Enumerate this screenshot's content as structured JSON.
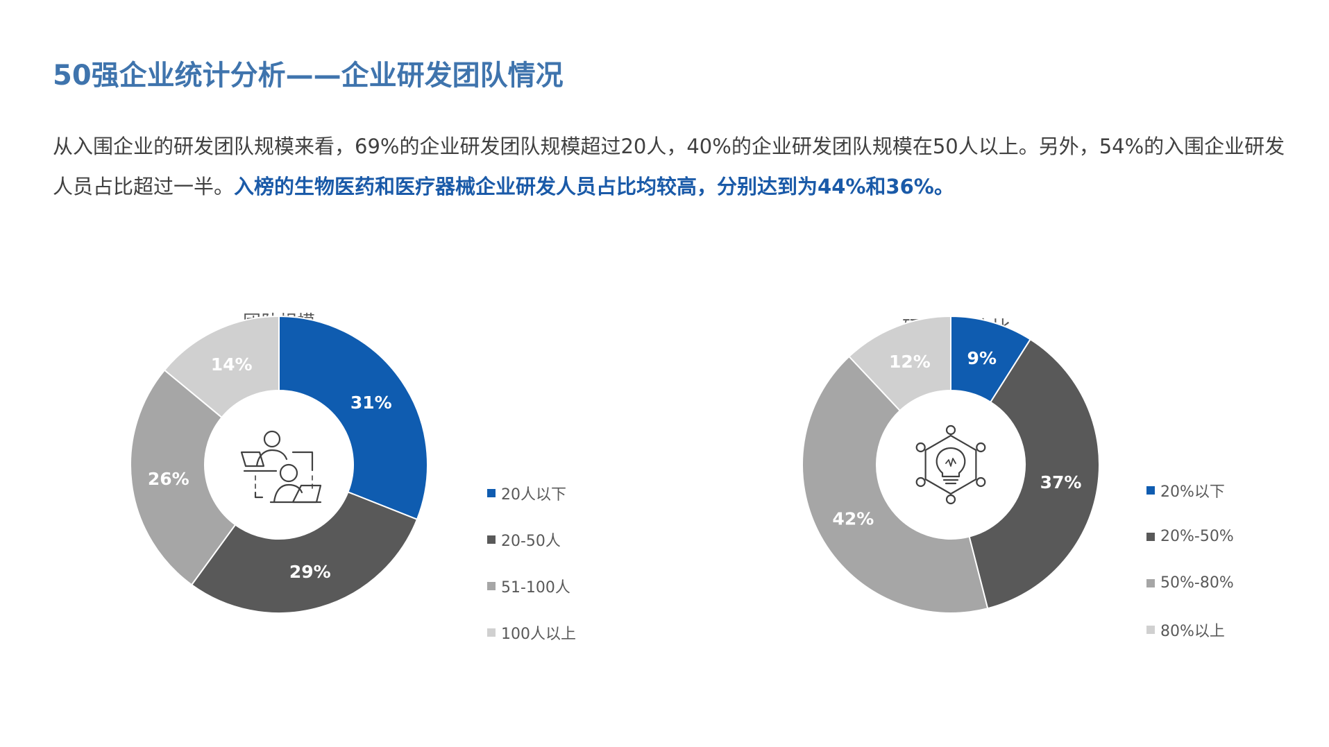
{
  "header": {
    "title": "50强企业统计分析——企业研发团队情况"
  },
  "summary": {
    "normal_text": "从入围企业的研发团队规模来看，69%的企业研发团队规模超过20人，40%的企业研发团队规模在50人以上。另外，54%的入围企业研发人员占比超过一半。",
    "highlight_text": "入榜的生物医药和医疗器械企业研发人员占比均较高，分别达到为44%和36%。"
  },
  "colors": {
    "title": "#3f74ad",
    "highlight": "#1a5aa8",
    "body_text": "#404040"
  },
  "chart_data": [
    {
      "type": "pie",
      "style": "donut",
      "title": "团队规模",
      "center_icon": "team-at-computers-icon",
      "legend_position": "right",
      "categories": [
        "20人以下",
        "20-50人",
        "51-100人",
        "100人以上"
      ],
      "values": [
        31,
        29,
        26,
        14
      ],
      "labels": [
        "31%",
        "29%",
        "26%",
        "14%"
      ],
      "colors": [
        "#0f5cb0",
        "#595959",
        "#a6a6a6",
        "#d0d0d0"
      ]
    },
    {
      "type": "pie",
      "style": "donut",
      "title": "研发人员占比",
      "center_icon": "lightbulb-network-icon",
      "legend_position": "right",
      "categories": [
        "20%以下",
        "20%-50%",
        "50%-80%",
        "80%以上"
      ],
      "values": [
        9,
        37,
        42,
        12
      ],
      "labels": [
        "9%",
        "37%",
        "42%",
        "12%"
      ],
      "colors": [
        "#0f5cb0",
        "#595959",
        "#a6a6a6",
        "#d0d0d0"
      ]
    }
  ]
}
